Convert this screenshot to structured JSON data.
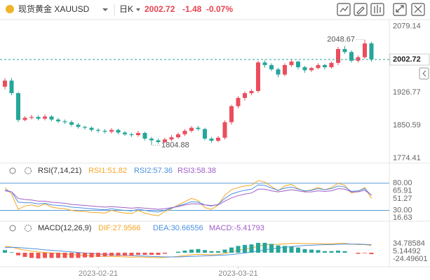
{
  "header": {
    "title": "现货黄金 XAUUSD",
    "period": "日K",
    "price": 2002.72,
    "change": -1.48,
    "change_pct_label": "-0.07%"
  },
  "chart_data": [
    {
      "type": "candlestick",
      "up_color": "#eb4d5c",
      "down_color": "#26a69a",
      "open": [
        1940,
        1954,
        1925,
        1863,
        1868,
        1870,
        1866,
        1871,
        1864,
        1860,
        1858,
        1852,
        1847,
        1845,
        1840,
        1838,
        1836,
        1840,
        1834,
        1830,
        1828,
        1833,
        1820,
        1816,
        1812,
        1818,
        1823,
        1830,
        1838,
        1845,
        1842,
        1820,
        1815,
        1822,
        1858,
        1895,
        1914,
        1925,
        1930,
        1996,
        1990,
        1980,
        1968,
        1990,
        1998,
        1985,
        1978,
        1983,
        1990,
        1985,
        1995,
        2027,
        2020,
        2000,
        2008,
        2040
      ],
      "high": [
        1960,
        1960,
        1928,
        1872,
        1875,
        1874,
        1876,
        1874,
        1868,
        1864,
        1862,
        1856,
        1850,
        1848,
        1844,
        1842,
        1844,
        1843,
        1838,
        1834,
        1838,
        1836,
        1824,
        1820,
        1822,
        1828,
        1834,
        1842,
        1849,
        1849,
        1845,
        1824,
        1826,
        1862,
        1898,
        1918,
        1929,
        1934,
        2000,
        2001,
        1994,
        1984,
        1994,
        2002,
        2000,
        1988,
        1986,
        1994,
        1993,
        1998,
        2032,
        2034,
        2024,
        2012,
        2048.67,
        2044
      ],
      "low": [
        1934,
        1920,
        1858,
        1860,
        1864,
        1862,
        1862,
        1860,
        1856,
        1854,
        1848,
        1843,
        1841,
        1836,
        1834,
        1832,
        1832,
        1830,
        1826,
        1824,
        1824,
        1816,
        1804.88,
        1808,
        1810,
        1814,
        1820,
        1826,
        1834,
        1838,
        1816,
        1811,
        1812,
        1818,
        1852,
        1890,
        1908,
        1920,
        1926,
        1984,
        1976,
        1962,
        1964,
        1986,
        1980,
        1972,
        1974,
        1980,
        1980,
        1982,
        1990,
        2016,
        1996,
        1996,
        2004,
        1998
      ],
      "close": [
        1954,
        1925,
        1863,
        1868,
        1870,
        1866,
        1871,
        1864,
        1860,
        1858,
        1852,
        1847,
        1845,
        1840,
        1838,
        1836,
        1840,
        1834,
        1830,
        1828,
        1833,
        1820,
        1816,
        1812,
        1818,
        1823,
        1830,
        1838,
        1845,
        1842,
        1820,
        1815,
        1822,
        1858,
        1895,
        1914,
        1925,
        1930,
        1996,
        1990,
        1980,
        1968,
        1990,
        1998,
        1985,
        1978,
        1983,
        1990,
        1985,
        1995,
        2027,
        2020,
        2000,
        2008,
        2040,
        2003
      ],
      "ylim": [
        1765,
        2095
      ],
      "yticks": [
        2079.14,
        1926.77,
        1850.59,
        1774.41
      ]
    },
    {
      "type": "line",
      "title": "RSI(7,14,21)",
      "ylim": [
        10,
        90
      ],
      "yticks": [
        {
          "value": 80,
          "label": "80.00"
        },
        65.91,
        51.27,
        {
          "value": 30,
          "label": "30.00"
        },
        16.63
      ],
      "series": [
        {
          "name": "RSI1:",
          "color": "#f5a623",
          "values": [
            72,
            60,
            32,
            38,
            40,
            37,
            42,
            36,
            34,
            33,
            30,
            28,
            28,
            26,
            26,
            25,
            30,
            27,
            25,
            24,
            30,
            25,
            22,
            20,
            28,
            33,
            40,
            46,
            52,
            48,
            35,
            32,
            40,
            58,
            68,
            72,
            75,
            76,
            85,
            82,
            74,
            66,
            75,
            78,
            70,
            65,
            68,
            72,
            68,
            72,
            80,
            76,
            62,
            65,
            72,
            51.82
          ]
        },
        {
          "name": "RSI2:",
          "color": "#4a90e2",
          "values": [
            68,
            64,
            45,
            44,
            44,
            42,
            43,
            40,
            39,
            38,
            36,
            35,
            34,
            33,
            32,
            31,
            33,
            31,
            30,
            29,
            32,
            30,
            28,
            27,
            30,
            34,
            38,
            42,
            46,
            45,
            40,
            38,
            41,
            52,
            60,
            64,
            67,
            69,
            77,
            76,
            71,
            67,
            71,
            73,
            69,
            66,
            67,
            70,
            68,
            70,
            75,
            73,
            65,
            66,
            70,
            57.36
          ]
        },
        {
          "name": "RSI3:",
          "color": "#a05ec8",
          "values": [
            66,
            64,
            52,
            50,
            49,
            47,
            47,
            45,
            44,
            43,
            41,
            40,
            39,
            38,
            37,
            36,
            37,
            36,
            35,
            34,
            35,
            34,
            33,
            32,
            33,
            35,
            37,
            40,
            42,
            42,
            40,
            39,
            40,
            47,
            53,
            57,
            60,
            62,
            69,
            69,
            66,
            64,
            66,
            68,
            66,
            64,
            64,
            66,
            65,
            66,
            70,
            69,
            64,
            64,
            67,
            58.38
          ]
        }
      ]
    },
    {
      "type": "macd",
      "title": "MACD(12,26,9)",
      "ylim": [
        -51,
        70
      ],
      "yticks": [
        34.78584,
        5.14492,
        -24.49601
      ],
      "xticks": [
        {
          "value": 14,
          "label": "2023-02-21"
        },
        {
          "value": 35,
          "label": "2023-03-21"
        }
      ],
      "series": [
        {
          "name": "DIF:",
          "color": "#f5a623",
          "values": [
            25,
            22,
            15,
            10,
            6,
            3,
            1,
            -1,
            -3,
            -5,
            -7,
            -9,
            -10,
            -12,
            -13,
            -14,
            -14,
            -15,
            -16,
            -17,
            -16,
            -17,
            -18,
            -19,
            -18,
            -16,
            -14,
            -11,
            -8,
            -6,
            -7,
            -8,
            -7,
            -3,
            3,
            9,
            14,
            18,
            25,
            30,
            32,
            32,
            34,
            36,
            36,
            35,
            35,
            35,
            34,
            34,
            36,
            36,
            33,
            31,
            31,
            27.9566
          ]
        },
        {
          "name": "DEA:",
          "color": "#4a90e2",
          "values": [
            20,
            21,
            20,
            18,
            16,
            14,
            11,
            9,
            7,
            5,
            3,
            1,
            -1,
            -3,
            -5,
            -7,
            -8,
            -9,
            -10,
            -11,
            -12,
            -13,
            -14,
            -15,
            -16,
            -16,
            -16,
            -15,
            -14,
            -13,
            -12,
            -11,
            -10,
            -9,
            -7,
            -4,
            -1,
            2,
            6,
            11,
            15,
            18,
            21,
            24,
            26,
            28,
            29,
            30,
            31,
            31,
            32,
            33,
            33,
            33,
            32,
            30.66556
          ]
        },
        {
          "name": "MACD:",
          "color": "#a05ec8",
          "up_color": "#26a69a",
          "down_color": "#ef5350",
          "values": [
            10,
            2,
            -10,
            -16,
            -20,
            -22,
            -20,
            -20,
            -20,
            -20,
            -20,
            -20,
            -18,
            -18,
            -16,
            -14,
            -12,
            -12,
            -12,
            -12,
            -8,
            -8,
            -8,
            -8,
            -4,
            0,
            4,
            8,
            12,
            14,
            10,
            6,
            6,
            12,
            20,
            26,
            30,
            32,
            38,
            38,
            34,
            28,
            26,
            24,
            20,
            14,
            12,
            10,
            6,
            6,
            8,
            6,
            0,
            -4,
            -2,
            -5.41793
          ]
        }
      ]
    }
  ]
}
